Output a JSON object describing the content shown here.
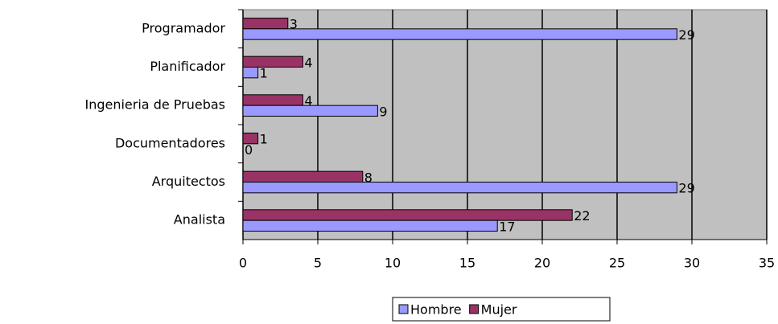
{
  "chart_data": {
    "type": "hbar",
    "categories": [
      "Programador",
      "Planificador",
      "Ingenieria de Pruebas",
      "Documentadores",
      "Arquitectos",
      "Analista"
    ],
    "series": [
      {
        "name": "Hombre",
        "color": "#9999ff",
        "values": [
          29,
          1,
          9,
          0,
          29,
          17
        ]
      },
      {
        "name": "Mujer",
        "color": "#993366",
        "values": [
          3,
          4,
          4,
          1,
          8,
          22
        ]
      }
    ],
    "xlim": [
      0,
      35
    ],
    "xticks": [
      0,
      5,
      10,
      15,
      20,
      25,
      30,
      35
    ],
    "grid": true,
    "legend": "bottom"
  }
}
